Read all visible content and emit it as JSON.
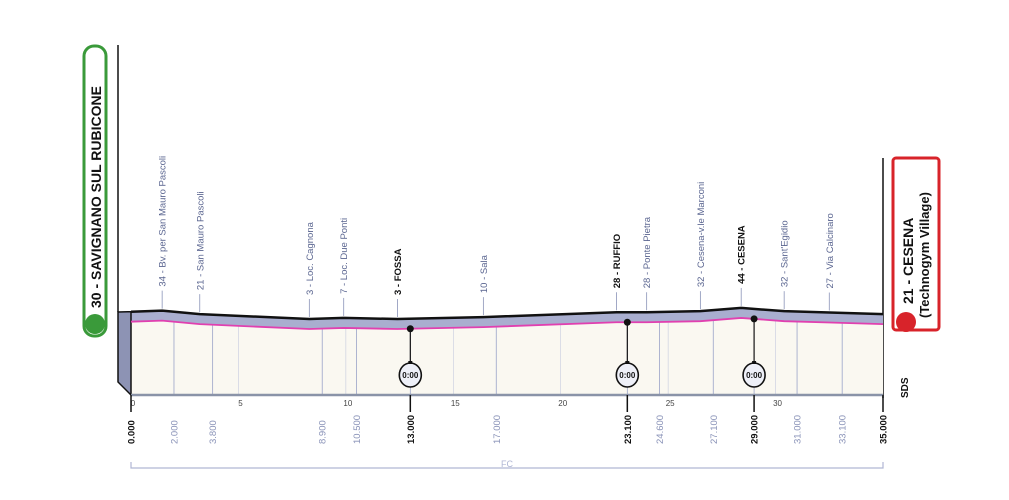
{
  "start": {
    "label": "30 - SAVIGNANO SUL RUBICONE",
    "color": "#3a9a3a"
  },
  "finish": {
    "label_line1": "21 - CESENA",
    "label_line2": "(Technogym Village)",
    "color": "#d8232a"
  },
  "sds_label": "SDS",
  "fc_label": "FC",
  "colors": {
    "profile_band": "#a9aecf",
    "profile_line": "#111111",
    "pink_line": "#e040b0",
    "ground": "#faf8f1",
    "grid": "#9aa3c8"
  },
  "chart_data": {
    "type": "area",
    "xlabel": "",
    "ylabel": "",
    "xlim": [
      0,
      35
    ],
    "x_ticks": [
      0,
      5,
      10,
      15,
      20,
      25,
      30
    ],
    "altitude_profile": [
      {
        "km": 0,
        "alt": 30
      },
      {
        "km": 1.45,
        "alt": 34
      },
      {
        "km": 3.2,
        "alt": 21
      },
      {
        "km": 8.3,
        "alt": 3
      },
      {
        "km": 9.9,
        "alt": 7
      },
      {
        "km": 12.4,
        "alt": 3
      },
      {
        "km": 16.4,
        "alt": 10
      },
      {
        "km": 22.6,
        "alt": 28
      },
      {
        "km": 24,
        "alt": 28
      },
      {
        "km": 26.5,
        "alt": 32
      },
      {
        "km": 28.4,
        "alt": 44
      },
      {
        "km": 30.4,
        "alt": 32
      },
      {
        "km": 32.5,
        "alt": 27
      },
      {
        "km": 35,
        "alt": 21
      }
    ],
    "places": [
      {
        "km": 1.45,
        "label": "34 - Bv. per San Mauro Pascoli",
        "major": false
      },
      {
        "km": 3.2,
        "label": "21 - San Mauro Pascoli",
        "major": false
      },
      {
        "km": 8.3,
        "label": "3 - Loc. Cagnona",
        "major": false
      },
      {
        "km": 9.9,
        "label": "7 - Loc. Due Ponti",
        "major": false
      },
      {
        "km": 12.4,
        "label": "3 - FOSSA",
        "major": true
      },
      {
        "km": 16.4,
        "label": "10 - Sala",
        "major": false
      },
      {
        "km": 22.6,
        "label": "28 - RUFFIO",
        "major": true
      },
      {
        "km": 24.0,
        "label": "28 - Ponte Pietra",
        "major": false
      },
      {
        "km": 26.5,
        "label": "32 - Cesena-v.le Marconi",
        "major": false
      },
      {
        "km": 28.4,
        "label": "44 - CESENA",
        "major": true
      },
      {
        "km": 30.4,
        "label": "32 - Sant'Egidio",
        "major": false
      },
      {
        "km": 32.5,
        "label": "27 - Via Calcinaro",
        "major": false
      }
    ],
    "distances": [
      {
        "km": 0,
        "label": "0.000",
        "major": true
      },
      {
        "km": 2,
        "label": "2.000",
        "major": false
      },
      {
        "km": 3.8,
        "label": "3.800",
        "major": false
      },
      {
        "km": 8.9,
        "label": "8.900",
        "major": false
      },
      {
        "km": 10.5,
        "label": "10.500",
        "major": false
      },
      {
        "km": 13,
        "label": "13.000",
        "major": true
      },
      {
        "km": 17,
        "label": "17.000",
        "major": false
      },
      {
        "km": 23.1,
        "label": "23.100",
        "major": true
      },
      {
        "km": 24.6,
        "label": "24.600",
        "major": false
      },
      {
        "km": 27.1,
        "label": "27.100",
        "major": false
      },
      {
        "km": 29,
        "label": "29.000",
        "major": true
      },
      {
        "km": 31,
        "label": "31.000",
        "major": false
      },
      {
        "km": 33.1,
        "label": "33.100",
        "major": false
      },
      {
        "km": 35,
        "label": "35.000",
        "major": true
      }
    ],
    "time_checks": [
      {
        "km": 13,
        "label": "0:00"
      },
      {
        "km": 23.1,
        "label": "0:00"
      },
      {
        "km": 29,
        "label": "0:00"
      }
    ]
  }
}
